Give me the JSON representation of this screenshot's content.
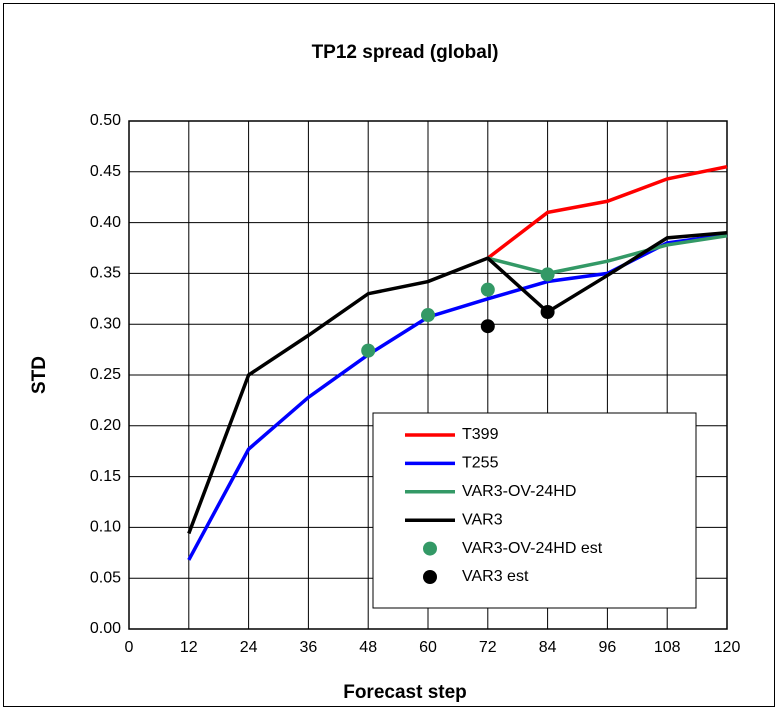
{
  "chart_data": {
    "type": "line",
    "title": "TP12 spread (global)",
    "x_label": "Forecast step",
    "y_label": "STD",
    "x": [
      12,
      24,
      36,
      48,
      60,
      72,
      84,
      96,
      108,
      120
    ],
    "xlim": [
      0,
      120
    ],
    "xticks": [
      0,
      12,
      24,
      36,
      48,
      60,
      72,
      84,
      96,
      108,
      120
    ],
    "ylim": [
      0,
      0.5
    ],
    "yticks": [
      {
        "value": 0,
        "label": "0.00"
      },
      {
        "value": 0.05,
        "label": "0.05"
      },
      {
        "value": 0.1,
        "label": "0.10"
      },
      {
        "value": 0.15,
        "label": "0.15"
      },
      {
        "value": 0.2,
        "label": "0.20"
      },
      {
        "value": 0.25,
        "label": "0.25"
      },
      {
        "value": 0.3,
        "label": "0.30"
      },
      {
        "value": 0.35,
        "label": "0.35"
      },
      {
        "value": 0.4,
        "label": "0.40"
      },
      {
        "value": 0.45,
        "label": "0.45"
      },
      {
        "value": 0.5,
        "label": "0.50"
      }
    ],
    "grid": true,
    "legend": "lower right",
    "series": [
      {
        "name": "T399",
        "color": "#ff0000",
        "mode": "line",
        "values": [
          null,
          null,
          null,
          null,
          null,
          0.365,
          0.41,
          0.421,
          0.443,
          0.455
        ]
      },
      {
        "name": "T255",
        "color": "#0000ff",
        "mode": "line",
        "values": [
          0.068,
          0.177,
          0.228,
          0.27,
          0.307,
          0.325,
          0.342,
          0.35,
          0.38,
          0.388
        ]
      },
      {
        "name": "VAR3-OV-24HD",
        "color": "#339966",
        "mode": "line",
        "values": [
          null,
          null,
          null,
          null,
          null,
          0.365,
          0.35,
          0.362,
          0.378,
          0.387
        ]
      },
      {
        "name": "VAR3",
        "color": "#000000",
        "mode": "line",
        "values": [
          0.094,
          0.25,
          0.289,
          0.33,
          0.342,
          0.365,
          0.312,
          0.348,
          0.385,
          0.39
        ]
      },
      {
        "name": "VAR3-OV-24HD est",
        "color": "#339966",
        "mode": "marker",
        "values": [
          null,
          null,
          null,
          0.274,
          0.309,
          0.334,
          0.349,
          null,
          null,
          null
        ]
      },
      {
        "name": "VAR3 est",
        "color": "#000000",
        "mode": "marker",
        "values": [
          null,
          null,
          null,
          null,
          null,
          0.298,
          0.312,
          null,
          null,
          null
        ]
      }
    ]
  }
}
